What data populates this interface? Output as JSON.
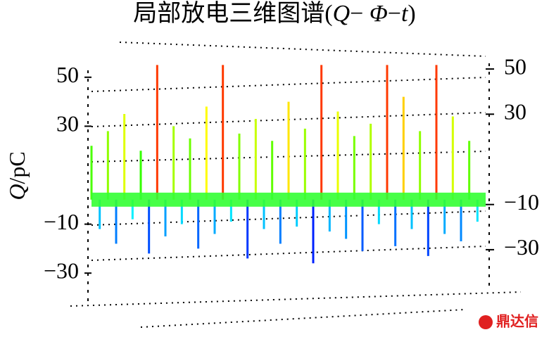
{
  "chart_data": {
    "type": "stem",
    "title": [
      "局部放电三维图谱(",
      "Q",
      "− ",
      "Φ",
      "−",
      "t",
      ")"
    ],
    "ylabel": [
      "Q",
      "/pC"
    ],
    "watermark": "鼎达信",
    "xlim": [
      0,
      360
    ],
    "ylim": [
      -40,
      60
    ],
    "yticks": [
      50,
      30,
      {
        "value": -10,
        "label": "−10"
      },
      {
        "value": -30,
        "label": "−30"
      }
    ],
    "y2lim": [
      -40,
      60
    ],
    "y2ticks": [
      50,
      30,
      {
        "value": -10,
        "label": "−10"
      },
      {
        "value": -30,
        "label": "−30"
      }
    ],
    "x": [
      0,
      7.5,
      15,
      22.5,
      30,
      37.5,
      45,
      52.5,
      60,
      67.5,
      75,
      82.5,
      90,
      97.5,
      105,
      112.5,
      120,
      127.5,
      135,
      142.5,
      150,
      157.5,
      165,
      172.5,
      180,
      187.5,
      195,
      202.5,
      210,
      217.5,
      225,
      232.5,
      240,
      247.5,
      255,
      262.5,
      270,
      277.5,
      285,
      292.5,
      300,
      307.5,
      315,
      322.5,
      330,
      337.5,
      345,
      352.5
    ],
    "values": [
      22,
      -12,
      28,
      -18,
      35,
      -8,
      20,
      -22,
      55,
      -15,
      30,
      -10,
      25,
      -20,
      38,
      -14,
      55,
      -9,
      27,
      -24,
      33,
      -12,
      24,
      -18,
      40,
      -11,
      29,
      -26,
      55,
      -13,
      36,
      -16,
      26,
      -21,
      31,
      -10,
      55,
      -19,
      42,
      -12,
      28,
      -23,
      55,
      -14,
      34,
      -17,
      24,
      -9
    ],
    "band_color": "#33ff33"
  }
}
